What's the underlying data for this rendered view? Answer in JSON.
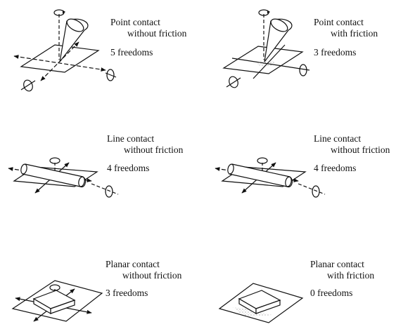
{
  "cells": [
    {
      "title_line1": "Point contact",
      "title_line2": "without friction",
      "freedoms": "5 freedoms"
    },
    {
      "title_line1": "Point contact",
      "title_line2": "with friction",
      "freedoms": "3 freedoms"
    },
    {
      "title_line1": "Line contact",
      "title_line2": "without friction",
      "freedoms": "4 freedoms"
    },
    {
      "title_line1": "Line contact",
      "title_line2": "without friction",
      "freedoms": "4 freedoms"
    },
    {
      "title_line1": "Planar contact",
      "title_line2": "without friction",
      "freedoms": "3 freedoms"
    },
    {
      "title_line1": "Planar contact",
      "title_line2": "with friction",
      "freedoms": "0 freedoms"
    }
  ]
}
